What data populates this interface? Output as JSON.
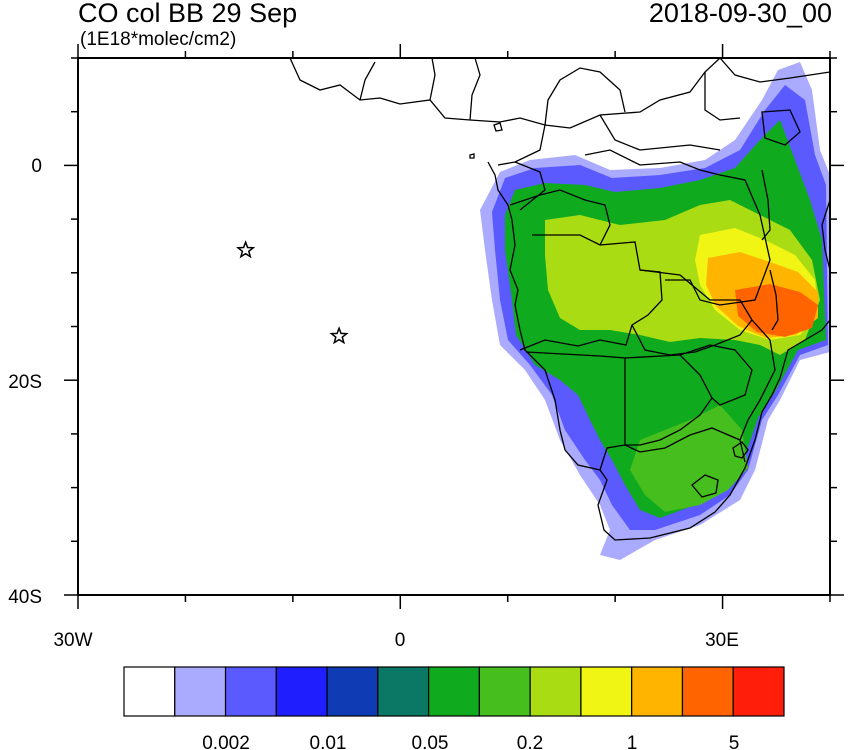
{
  "header": {
    "title": "CO col BB 29 Sep",
    "datetime": "2018-09-30_00",
    "units": "(1E18*molec/cm2)"
  },
  "map": {
    "lon_range": [
      -30,
      40
    ],
    "lat_range": [
      -40,
      10
    ],
    "lat_tick_labels": [
      "0",
      "20S",
      "40S"
    ],
    "lon_tick_labels": [
      "30W",
      "0",
      "30E"
    ],
    "markers": [
      {
        "name": "star-marker-1",
        "lon": -14.4,
        "lat": -7.9
      },
      {
        "name": "star-marker-2",
        "lon": -5.7,
        "lat": -15.9
      }
    ]
  },
  "colorbar": {
    "colors": [
      "#ffffff",
      "#aaaaff",
      "#5a5aff",
      "#1e1eff",
      "#0f3cb4",
      "#0a7864",
      "#0faa1e",
      "#46be1e",
      "#aadc14",
      "#f0f514",
      "#ffb400",
      "#ff6400",
      "#ff1e0a"
    ],
    "labels": [
      "0.002",
      "0.01",
      "0.05",
      "0.2",
      "1",
      "5"
    ]
  }
}
